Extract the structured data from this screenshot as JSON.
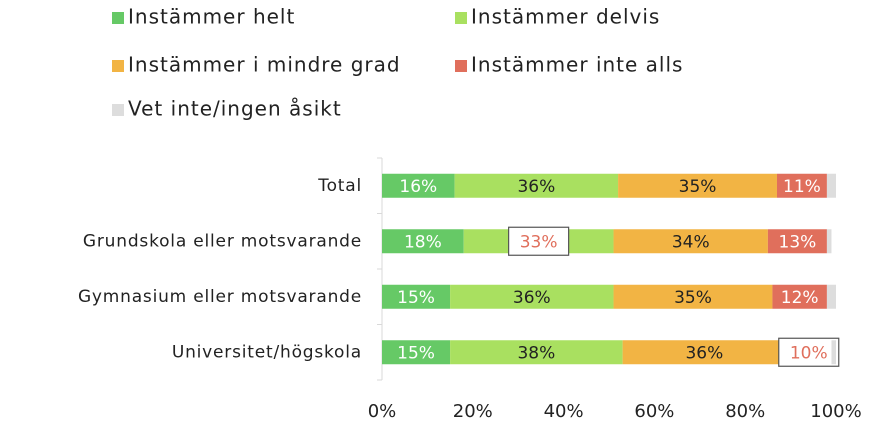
{
  "chart_data": {
    "type": "stacked-barh",
    "categories": [
      "Total",
      "Grundskola eller motsvarande",
      "Gymnasium eller motsvarande",
      "Universitet/högskola"
    ],
    "series": [
      {
        "name": "Instämmer helt",
        "color": "#66c966",
        "label_color": "#ffffff",
        "values": [
          16,
          18,
          15,
          15
        ],
        "value_labels": [
          "16%",
          "18%",
          "15%",
          "15%"
        ]
      },
      {
        "name": "Instämmer delvis",
        "color": "#a9e060",
        "label_color": "#222222",
        "values": [
          36,
          33,
          36,
          38
        ],
        "value_labels": [
          "36%",
          "33%",
          "36%",
          "38%"
        ]
      },
      {
        "name": "Instämmer i mindre grad",
        "color": "#f2b444",
        "label_color": "#222222",
        "values": [
          35,
          34,
          35,
          36
        ],
        "value_labels": [
          "35%",
          "34%",
          "35%",
          "36%"
        ]
      },
      {
        "name": "Instämmer inte alls",
        "color": "#e06f5c",
        "label_color": "#ffffff",
        "values": [
          11,
          13,
          12,
          10
        ],
        "value_labels": [
          "11%",
          "13%",
          "12%",
          "10%"
        ]
      },
      {
        "name": "Vet inte/ingen åsikt",
        "color": "#dddddd",
        "values": [
          2,
          1,
          2,
          1
        ]
      }
    ],
    "boxed_labels": [
      {
        "series": 1,
        "category": 1
      },
      {
        "series": 3,
        "category": 3
      }
    ],
    "boxed_label_color": "#e06f5c",
    "xlim": [
      0,
      100
    ],
    "xticks": [
      {
        "value": 0,
        "label": "0%"
      },
      {
        "value": 20,
        "label": "20%"
      },
      {
        "value": 40,
        "label": "40%"
      },
      {
        "value": 60,
        "label": "60%"
      },
      {
        "value": 80,
        "label": "80%"
      },
      {
        "value": 100,
        "label": "100%"
      }
    ]
  }
}
